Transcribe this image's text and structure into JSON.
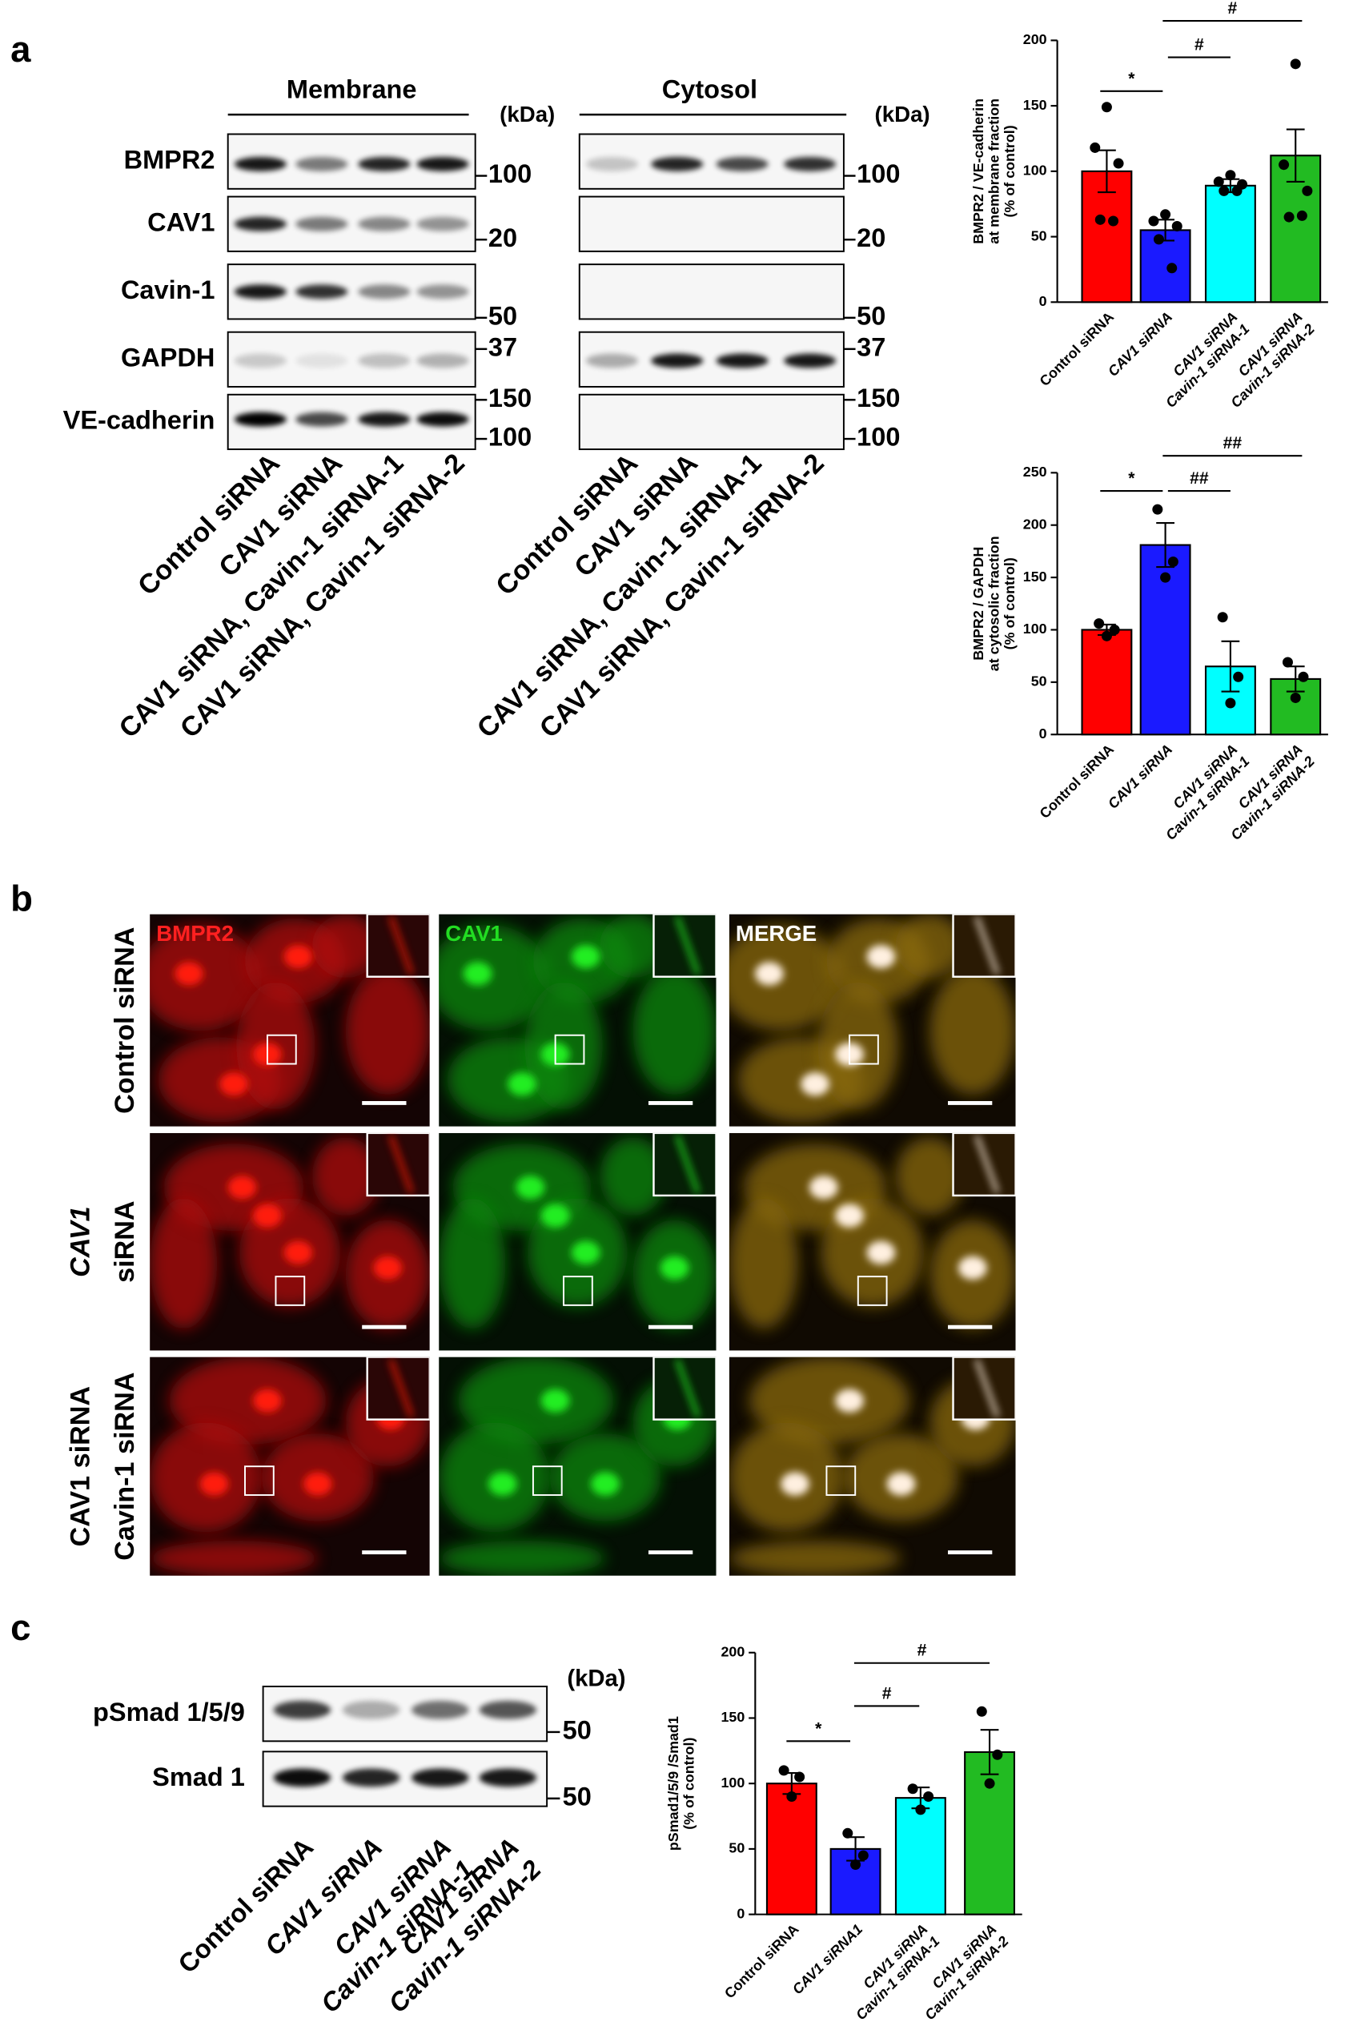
{
  "figure": {
    "panel_labels": [
      "a",
      "b",
      "c"
    ],
    "panel_a": {
      "row_labels": [
        "BMPR2",
        "CAV1",
        "Cavin-1",
        "GAPDH",
        "VE-cadherin"
      ],
      "groups": [
        {
          "title": "Membrane",
          "unit": "(kDa)",
          "markers": [
            [
              100
            ],
            [
              20
            ],
            [
              50
            ],
            [
              37
            ],
            [
              150,
              100
            ]
          ],
          "lanes": [
            "Control siRNA",
            "CAV1 siRNA",
            "CAV1 siRNA, Cavin-1 siRNA-1",
            "CAV1 siRNA, Cavin-1 siRNA-2"
          ]
        },
        {
          "title": "Cytosol",
          "unit": "(kDa)",
          "markers": [
            [
              100
            ],
            [
              20
            ],
            [
              50
            ],
            [
              37
            ],
            [
              150,
              100
            ]
          ],
          "lanes": [
            "Control siRNA",
            "CAV1 siRNA",
            "CAV1 siRNA, Cavin-1 siRNA-1",
            "CAV1 siRNA, Cavin-1 siRNA-2"
          ]
        }
      ]
    },
    "panel_b": {
      "channels": [
        "BMPR2",
        "CAV1",
        "MERGE"
      ],
      "conditions": [
        [
          "Control siRNA"
        ],
        [
          "CAV1",
          "siRNA"
        ],
        [
          "CAV1 siRNA",
          "Cavin-1 siRNA"
        ]
      ]
    },
    "panel_c": {
      "row_labels": [
        "pSmad 1/5/9",
        "Smad 1"
      ],
      "unit": "(kDa)",
      "markers": [
        [
          50
        ],
        [
          50
        ]
      ],
      "lanes": [
        [
          "Control siRNA"
        ],
        [
          "CAV1 siRNA"
        ],
        [
          "CAV1 siRNA",
          "Cavin-1 siRNA-1"
        ],
        [
          "CAV1 siRNA",
          "Cavin-1 siRNA-2"
        ]
      ]
    }
  },
  "chart_data": [
    {
      "type": "bar",
      "ylabel": [
        "BMPR2 / VE-cadherin",
        "at membrane fraction",
        "(% of control)"
      ],
      "categories": [
        [
          "Control siRNA"
        ],
        [
          "CAV1 siRNA"
        ],
        [
          "CAV1 siRNA",
          "Cavin-1 siRNA-1"
        ],
        [
          "CAV1 siRNA",
          "Cavin-1 siRNA-2"
        ]
      ],
      "values": [
        100,
        55,
        89,
        112
      ],
      "errors": [
        16,
        8,
        5,
        20
      ],
      "points": [
        [
          149,
          118,
          106,
          63,
          62
        ],
        [
          67,
          62,
          58,
          48,
          26
        ],
        [
          97,
          92,
          90,
          85,
          85
        ],
        [
          182,
          105,
          85,
          65,
          66
        ]
      ],
      "colors": [
        "#ff0000",
        "#1a1aff",
        "#00ffff",
        "#22bb22"
      ],
      "ylim": [
        0,
        200
      ],
      "yticks": [
        0,
        50,
        100,
        150,
        200
      ],
      "annotations": [
        "*",
        "#",
        "#"
      ]
    },
    {
      "type": "bar",
      "ylabel": [
        "BMPR2 / GAPDH",
        "at cytosolic fraction",
        "(% of control)"
      ],
      "categories": [
        [
          "Control siRNA"
        ],
        [
          "CAV1 siRNA"
        ],
        [
          "CAV1 siRNA",
          "Cavin-1 siRNA-1"
        ],
        [
          "CAV1 siRNA",
          "Cavin-1 siRNA-2"
        ]
      ],
      "values": [
        100,
        181,
        65,
        53
      ],
      "errors": [
        5,
        21,
        24,
        12
      ],
      "points": [
        [
          106,
          100,
          94
        ],
        [
          215,
          165,
          150
        ],
        [
          112,
          55,
          30
        ],
        [
          69,
          55,
          35
        ]
      ],
      "colors": [
        "#ff0000",
        "#1a1aff",
        "#00ffff",
        "#22bb22"
      ],
      "ylim": [
        0,
        250
      ],
      "yticks": [
        0,
        50,
        100,
        150,
        200,
        250
      ],
      "annotations": [
        "*",
        "##",
        "##"
      ]
    },
    {
      "type": "bar",
      "ylabel": [
        "pSmad1/5/9 /Smad1",
        "(% of control)"
      ],
      "categories": [
        [
          "Control siRNA"
        ],
        [
          "CAV1 siRNA1"
        ],
        [
          "CAV1 siRNA",
          "Cavin-1 siRNA-1"
        ],
        [
          "CAV1 siRNA",
          "Cavin-1 siRNA-2"
        ]
      ],
      "values": [
        100,
        50,
        89,
        124
      ],
      "errors": [
        8,
        9,
        8,
        17
      ],
      "points": [
        [
          110,
          105,
          90
        ],
        [
          62,
          45,
          38
        ],
        [
          96,
          90,
          80
        ],
        [
          155,
          122,
          100
        ]
      ],
      "colors": [
        "#ff0000",
        "#1a1aff",
        "#00ffff",
        "#22bb22"
      ],
      "ylim": [
        0,
        200
      ],
      "yticks": [
        0,
        50,
        100,
        150,
        200
      ],
      "annotations": [
        "*",
        "#",
        "#"
      ]
    }
  ]
}
